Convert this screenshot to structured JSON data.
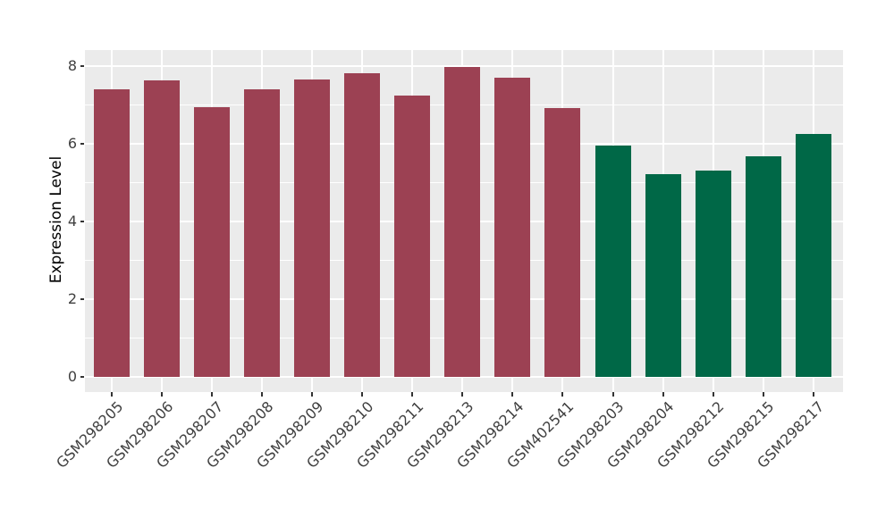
{
  "chart_data": {
    "type": "bar",
    "title": "",
    "xlabel": "",
    "ylabel": "Expression Level",
    "categories": [
      "GSM298205",
      "GSM298206",
      "GSM298207",
      "GSM298208",
      "GSM298209",
      "GSM298210",
      "GSM298211",
      "GSM298213",
      "GSM298214",
      "GSM402541",
      "GSM298203",
      "GSM298204",
      "GSM298212",
      "GSM298215",
      "GSM298217"
    ],
    "values": [
      7.41,
      7.63,
      6.95,
      7.41,
      7.67,
      7.81,
      7.25,
      7.98,
      7.71,
      6.93,
      5.95,
      5.22,
      5.3,
      5.68,
      6.25
    ],
    "bar_groups": [
      "groupA",
      "groupA",
      "groupA",
      "groupA",
      "groupA",
      "groupA",
      "groupA",
      "groupA",
      "groupA",
      "groupA",
      "groupB",
      "groupB",
      "groupB",
      "groupB",
      "groupB"
    ],
    "group_colors": {
      "groupA": "#9C4153",
      "groupB": "#006847"
    },
    "yticks": [
      "0",
      "2",
      "4",
      "6",
      "8"
    ],
    "ytick_values": [
      0,
      2,
      4,
      6,
      8
    ],
    "minor_gridline_values": [
      1,
      3,
      5,
      7
    ],
    "ylim": [
      -0.4,
      8.42
    ],
    "grid": "on",
    "legend_position": "none",
    "panel_bg": "#EBEBEB",
    "grid_color": "#FFFFFF",
    "axis_text_color": "#404040"
  }
}
